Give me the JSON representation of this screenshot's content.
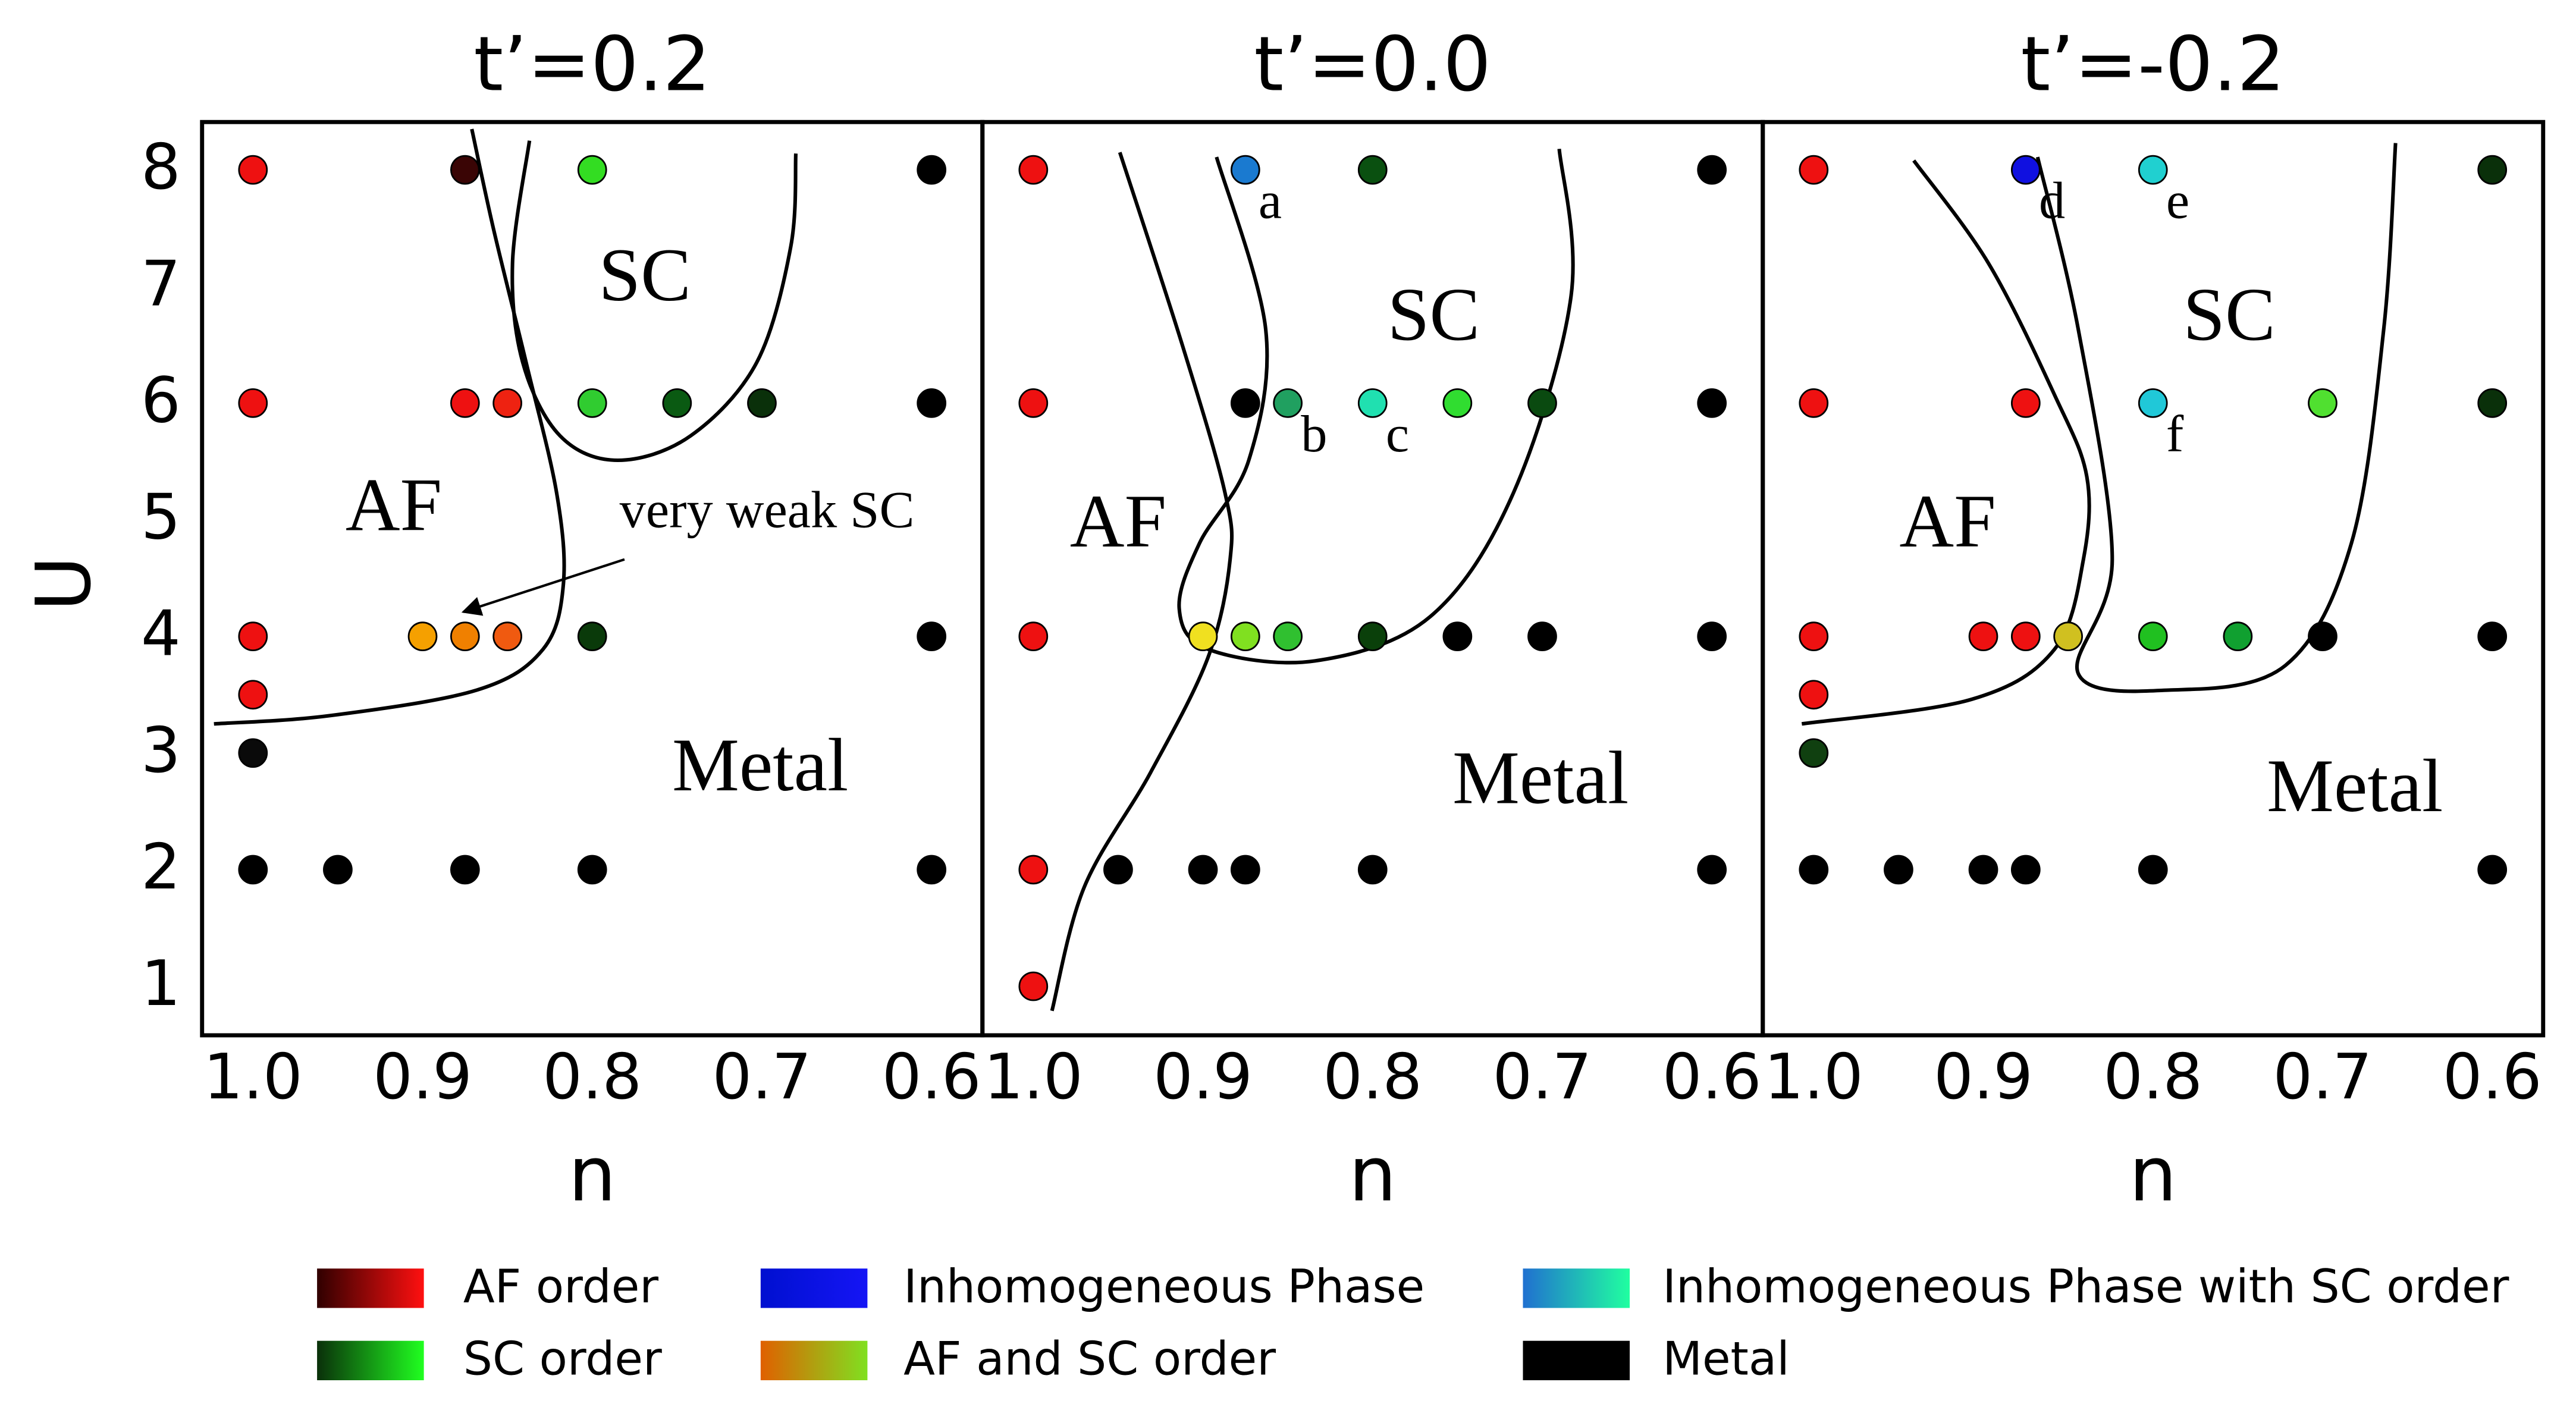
{
  "chart_data": [
    {
      "type": "scatter",
      "title": "t’=0.2",
      "xlabel": "n",
      "ylabel": "U",
      "xlim": [
        1.03,
        0.57
      ],
      "ylim": [
        0.58,
        8.41
      ],
      "xticks": [
        {
          "value": 1.0,
          "label": "1.0"
        },
        0.9,
        0.8,
        0.7,
        0.6
      ],
      "yticks": [
        1,
        2,
        3,
        4,
        5,
        6,
        7,
        8
      ],
      "points": {
        "x": [
          1.0,
          0.875,
          0.8,
          0.6,
          1.0,
          0.875,
          0.85,
          0.8,
          0.75,
          0.7,
          0.6,
          1.0,
          0.9,
          0.875,
          0.85,
          0.8,
          0.6,
          1.0,
          1.0,
          1.0,
          0.95,
          0.875,
          0.8,
          0.6
        ],
        "y": [
          8,
          8,
          8,
          8,
          6,
          6,
          6,
          6,
          6,
          6,
          6,
          4,
          4,
          4,
          4,
          4,
          4,
          3.5,
          3,
          2,
          2,
          2,
          2,
          2
        ],
        "colors": [
          "#ee1111",
          "#3a0505",
          "#33dd22",
          "#000000",
          "#ee1111",
          "#ee1111",
          "#ee2211",
          "#30cc30",
          "#0a5a12",
          "#0a300a",
          "#000000",
          "#ee1111",
          "#f5a000",
          "#f08000",
          "#f05a10",
          "#0a3a0a",
          "#000000",
          "#ee1111",
          "#0a0a0a",
          "#000000",
          "#000000",
          "#000000",
          "#000000",
          "#000000"
        ],
        "labels": [
          null,
          null,
          null,
          null,
          null,
          null,
          null,
          null,
          null,
          null,
          null,
          null,
          null,
          null,
          null,
          null,
          null,
          null,
          null,
          null,
          null,
          null,
          null,
          null
        ]
      },
      "boundaries": [
        {
          "x": [
            0.871,
            0.858,
            0.839,
            0.821,
            0.817,
            0.829,
            0.868,
            0.955,
            1.023
          ],
          "y": [
            8.35,
            7.48,
            6.35,
            5.23,
            4.45,
            3.89,
            3.54,
            3.32,
            3.25
          ]
        },
        {
          "x": [
            0.837,
            0.847,
            0.841,
            0.819,
            0.785,
            0.742,
            0.703,
            0.683,
            0.68
          ],
          "y": [
            8.25,
            7.2,
            6.35,
            5.72,
            5.51,
            5.72,
            6.35,
            7.34,
            8.14
          ]
        }
      ],
      "annotations": [
        {
          "text": "AF",
          "x": 0.917,
          "y": 5.06
        },
        {
          "text": "SC",
          "x": 0.769,
          "y": 7.03
        },
        {
          "text": "Metal",
          "x": 0.701,
          "y": 2.83
        },
        {
          "text": "very weak SC",
          "x": 0.697,
          "y": 5.04,
          "arrow_from": [
            0.781,
            4.66
          ],
          "arrow_to": [
            0.876,
            4.21
          ]
        }
      ]
    },
    {
      "type": "scatter",
      "title": "t’=0.0",
      "xlabel": "n",
      "xlim": [
        1.03,
        0.57
      ],
      "ylim": [
        0.58,
        8.41
      ],
      "xticks": [
        {
          "value": 1.0,
          "label": "1.0"
        },
        0.9,
        0.8,
        0.7,
        0.6
      ],
      "points": {
        "x": [
          1.0,
          0.875,
          0.8,
          0.6,
          1.0,
          0.875,
          0.85,
          0.8,
          0.75,
          0.7,
          0.6,
          1.0,
          0.9,
          0.875,
          0.85,
          0.8,
          0.75,
          0.7,
          0.6,
          1.0,
          0.95,
          0.9,
          0.875,
          0.8,
          0.6,
          1.0
        ],
        "y": [
          8,
          8,
          8,
          8,
          6,
          6,
          6,
          6,
          6,
          6,
          6,
          4,
          4,
          4,
          4,
          4,
          4,
          4,
          4,
          2,
          2,
          2,
          2,
          2,
          2,
          1
        ],
        "colors": [
          "#ee1111",
          "#1a7ad0",
          "#0a5010",
          "#000000",
          "#ee1111",
          "#000000",
          "#20a060",
          "#20e0b0",
          "#30dd30",
          "#0a4a10",
          "#000000",
          "#ee1111",
          "#f0e020",
          "#80e020",
          "#30c030",
          "#0a400a",
          "#000000",
          "#000000",
          "#000000",
          "#ee1111",
          "#000000",
          "#000000",
          "#000000",
          "#000000",
          "#000000",
          "#ee1111"
        ],
        "labels": [
          null,
          "a",
          null,
          null,
          null,
          null,
          "b",
          "c",
          null,
          null,
          null,
          null,
          null,
          null,
          null,
          null,
          null,
          null,
          null,
          null,
          null,
          null,
          null,
          null,
          null,
          null
        ]
      },
      "boundaries": [
        {
          "x": [
            0.949,
            0.912,
            0.887,
            0.884,
            0.897,
            0.931,
            0.97,
            0.989
          ],
          "y": [
            8.15,
            6.49,
            5.23,
            4.66,
            3.82,
            2.83,
            1.85,
            0.79
          ]
        },
        {
          "x": [
            0.892,
            0.863,
            0.873,
            0.902,
            0.914,
            0.897,
            0.834,
            0.766,
            0.717,
            0.683,
            0.69
          ],
          "y": [
            8.11,
            6.63,
            5.51,
            4.8,
            4.24,
            3.89,
            3.79,
            4.17,
            5.23,
            6.92,
            8.18
          ]
        }
      ],
      "annotations": [
        {
          "text": "AF",
          "x": 0.95,
          "y": 4.92
        },
        {
          "text": "SC",
          "x": 0.764,
          "y": 6.69
        },
        {
          "text": "Metal",
          "x": 0.701,
          "y": 2.72
        }
      ]
    },
    {
      "type": "scatter",
      "title": "t’=-0.2",
      "xlabel": "n",
      "xlim": [
        1.03,
        0.57
      ],
      "ylim": [
        0.58,
        8.41
      ],
      "xticks": [
        {
          "value": 1.0,
          "label": "1.0"
        },
        0.9,
        0.8,
        0.7,
        0.6
      ],
      "points": {
        "x": [
          1.0,
          0.875,
          0.8,
          0.6,
          1.0,
          0.875,
          0.8,
          0.7,
          0.6,
          1.0,
          0.9,
          0.875,
          0.85,
          0.8,
          0.75,
          0.7,
          0.6,
          1.0,
          1.0,
          1.0,
          0.95,
          0.9,
          0.875,
          0.8,
          0.6
        ],
        "y": [
          8,
          8,
          8,
          8,
          6,
          6,
          6,
          6,
          6,
          4,
          4,
          4,
          4,
          4,
          4,
          4,
          4,
          3.5,
          3,
          2,
          2,
          2,
          2,
          2,
          2
        ],
        "colors": [
          "#ee1111",
          "#1010e0",
          "#20d0d0",
          "#0a300a",
          "#ee1111",
          "#ee1111",
          "#20c8d8",
          "#50e030",
          "#0a300a",
          "#ee1111",
          "#ee1111",
          "#ee1111",
          "#d0c020",
          "#20c020",
          "#10a030",
          "#000000",
          "#000000",
          "#ee1111",
          "#104010",
          "#000000",
          "#000000",
          "#000000",
          "#000000",
          "#000000",
          "#000000"
        ],
        "labels": [
          null,
          "d",
          "e",
          null,
          null,
          null,
          "f",
          null,
          null,
          null,
          null,
          null,
          null,
          null,
          null,
          null,
          null,
          null,
          null,
          null,
          null,
          null,
          null,
          null,
          null
        ]
      },
      "boundaries": [
        {
          "x": [
            0.941,
            0.897,
            0.858,
            0.839,
            0.841,
            0.858,
            0.907,
            1.007
          ],
          "y": [
            8.08,
            7.2,
            6.07,
            5.37,
            4.66,
            3.89,
            3.46,
            3.25
          ]
        },
        {
          "x": [
            0.868,
            0.844,
            0.824,
            0.844,
            0.79,
            0.722,
            0.683,
            0.664,
            0.657
          ],
          "y": [
            8.11,
            6.63,
            4.66,
            3.68,
            3.54,
            3.75,
            4.8,
            6.63,
            8.23
          ]
        }
      ],
      "annotations": [
        {
          "text": "AF",
          "x": 0.921,
          "y": 4.92
        },
        {
          "text": "SC",
          "x": 0.755,
          "y": 6.69
        },
        {
          "text": "Metal",
          "x": 0.681,
          "y": 2.65
        }
      ]
    }
  ],
  "legend": [
    {
      "label": "AF order",
      "colors": [
        "#300000",
        "#ff1010"
      ]
    },
    {
      "label": "SC order",
      "colors": [
        "#0a300a",
        "#20ff20"
      ]
    },
    {
      "label": "Inhomogeneous Phase",
      "colors": [
        "#0010d0",
        "#1515f5"
      ]
    },
    {
      "label": "AF and SC order",
      "colors": [
        "#e06000",
        "#80e020"
      ]
    },
    {
      "label": "Inhomogeneous Phase with SC order",
      "colors": [
        "#2070d0",
        "#20ffa0"
      ]
    },
    {
      "label": "Metal",
      "colors": [
        "#000000",
        "#000000"
      ]
    }
  ]
}
